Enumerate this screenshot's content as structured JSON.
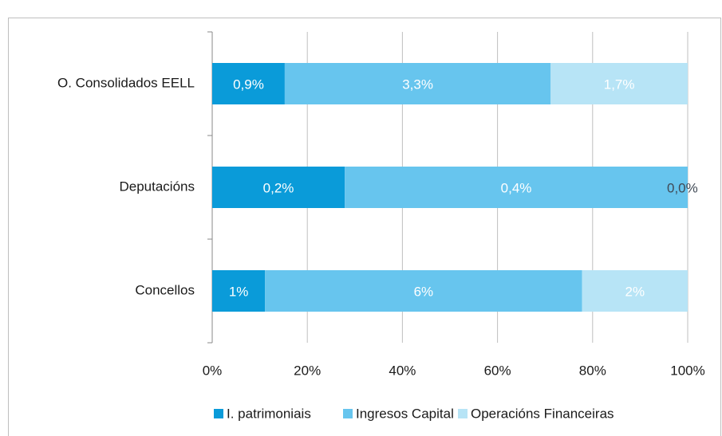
{
  "chart_data": {
    "type": "bar",
    "orientation": "horizontal",
    "stacking": "percent",
    "categories": [
      "O. Consolidados EELL",
      "Deputacións",
      "Concellos"
    ],
    "series": [
      {
        "name": "I. patrimoniais",
        "color": "#0a9bd9",
        "values": [
          0.9,
          0.17,
          1
        ],
        "value_labels": [
          "0,9%",
          "0,2%",
          "1%"
        ]
      },
      {
        "name": "Ingresos Capital",
        "color": "#67c5ee",
        "values": [
          3.3,
          0.44,
          6
        ],
        "value_labels": [
          "3,3%",
          "0,4%",
          "6%"
        ]
      },
      {
        "name": "Operacións Financeiras",
        "color": "#b7e4f6",
        "values": [
          1.7,
          0.0,
          2
        ],
        "value_labels": [
          "1,7%",
          "0,0%",
          "2%"
        ]
      }
    ],
    "xlim": [
      0,
      100
    ],
    "xticks": [
      {
        "value": 0,
        "label": "0%"
      },
      {
        "value": 20,
        "label": "20%"
      },
      {
        "value": 40,
        "label": "40%"
      },
      {
        "value": 60,
        "label": "60%"
      },
      {
        "value": 80,
        "label": "80%"
      },
      {
        "value": 100,
        "label": "100%"
      }
    ],
    "grid": true,
    "legend": "bottom"
  }
}
